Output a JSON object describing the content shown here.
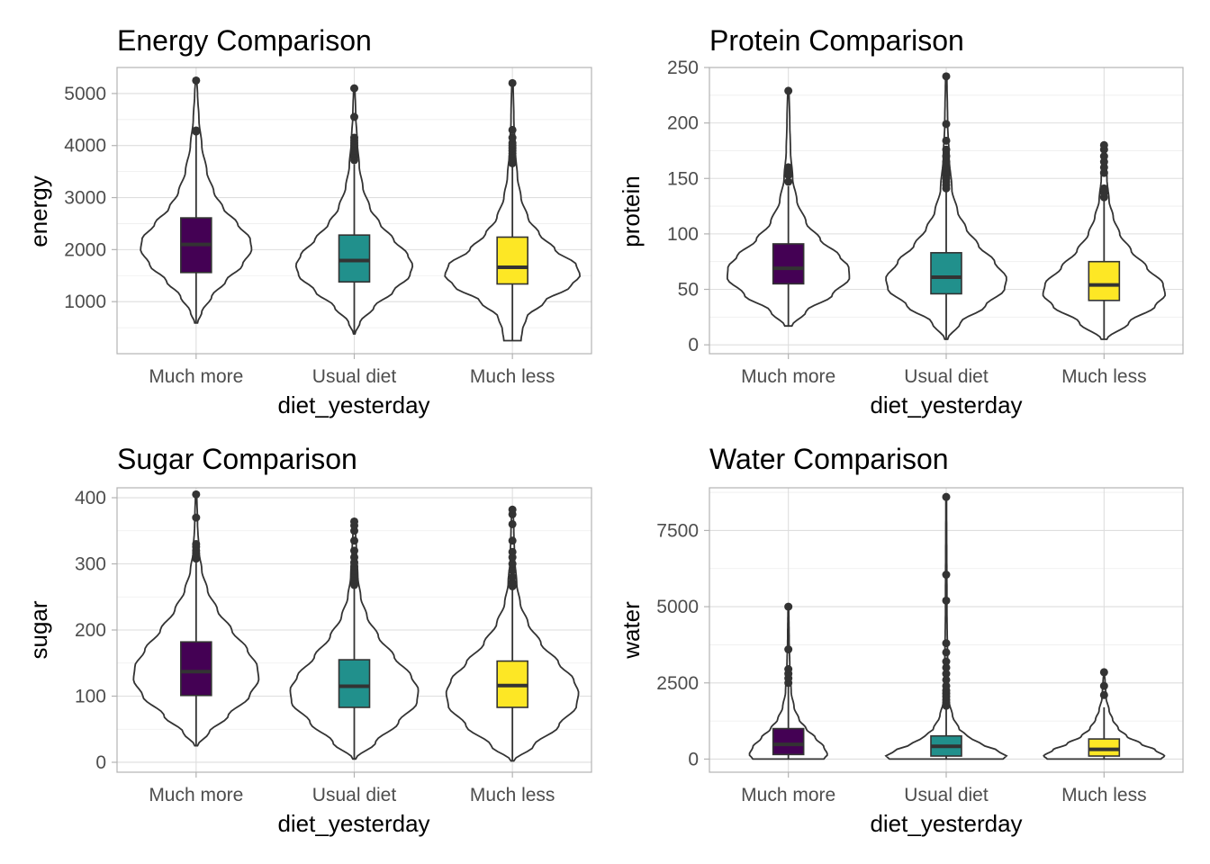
{
  "colors": {
    "Much more": "#440154",
    "Usual diet": "#21908C",
    "Much less": "#FDE725"
  },
  "chart_data": [
    {
      "type": "violin",
      "title": "Energy Comparison",
      "xlabel": "diet_yesterday",
      "ylabel": "energy",
      "categories": [
        "Much more",
        "Usual diet",
        "Much less"
      ],
      "ylim": [
        0,
        5500
      ],
      "yticks": [
        1000,
        2000,
        3000,
        4000,
        5000
      ],
      "yminor": [
        500,
        1500,
        2500,
        3500,
        4500,
        5500
      ],
      "grid": true,
      "groups": [
        {
          "category": "Much more",
          "min": 590,
          "q1": 1560,
          "median": 2100,
          "q3": 2610,
          "whisker_low": 590,
          "whisker_high": 4200,
          "max": 5250,
          "outliers": [
            4270,
            4290,
            5250
          ],
          "density": [
            [
              590,
              0.02
            ],
            [
              800,
              0.08
            ],
            [
              1100,
              0.22
            ],
            [
              1400,
              0.42
            ],
            [
              1700,
              0.65
            ],
            [
              2000,
              0.78
            ],
            [
              2200,
              0.76
            ],
            [
              2500,
              0.58
            ],
            [
              2800,
              0.38
            ],
            [
              3100,
              0.25
            ],
            [
              3500,
              0.15
            ],
            [
              4000,
              0.08
            ],
            [
              4500,
              0.04
            ],
            [
              5000,
              0.02
            ],
            [
              5250,
              0.01
            ]
          ]
        },
        {
          "category": "Usual diet",
          "min": 380,
          "q1": 1380,
          "median": 1790,
          "q3": 2280,
          "whisker_low": 380,
          "whisker_high": 3640,
          "max": 5100,
          "outliers": [
            3720,
            3770,
            3810,
            3860,
            3900,
            3950,
            4000,
            4050,
            4100,
            4150,
            4550,
            5100
          ],
          "density": [
            [
              380,
              0.01
            ],
            [
              600,
              0.08
            ],
            [
              900,
              0.28
            ],
            [
              1200,
              0.55
            ],
            [
              1500,
              0.78
            ],
            [
              1700,
              0.82
            ],
            [
              1900,
              0.75
            ],
            [
              2200,
              0.55
            ],
            [
              2500,
              0.36
            ],
            [
              2800,
              0.22
            ],
            [
              3200,
              0.12
            ],
            [
              3600,
              0.07
            ],
            [
              4100,
              0.04
            ],
            [
              4600,
              0.02
            ],
            [
              5100,
              0.01
            ]
          ]
        },
        {
          "category": "Much less",
          "min": 250,
          "q1": 1340,
          "median": 1660,
          "q3": 2240,
          "whisker_low": 250,
          "whisker_high": 3590,
          "max": 5200,
          "outliers": [
            3660,
            3720,
            3760,
            3800,
            3850,
            3900,
            3950,
            4000,
            4050,
            4150,
            4300,
            5200
          ],
          "density": [
            [
              250,
              0.12
            ],
            [
              450,
              0.14
            ],
            [
              700,
              0.2
            ],
            [
              1000,
              0.45
            ],
            [
              1300,
              0.82
            ],
            [
              1500,
              0.95
            ],
            [
              1700,
              0.9
            ],
            [
              2000,
              0.6
            ],
            [
              2300,
              0.38
            ],
            [
              2600,
              0.22
            ],
            [
              3000,
              0.12
            ],
            [
              3400,
              0.07
            ],
            [
              3900,
              0.04
            ],
            [
              4500,
              0.02
            ],
            [
              5200,
              0.01
            ]
          ]
        }
      ]
    },
    {
      "type": "violin",
      "title": "Protein Comparison",
      "xlabel": "diet_yesterday",
      "ylabel": "protein",
      "categories": [
        "Much more",
        "Usual diet",
        "Much less"
      ],
      "ylim": [
        -8,
        250
      ],
      "yticks": [
        0,
        50,
        100,
        150,
        200,
        250
      ],
      "yminor": [
        25,
        75,
        125,
        175,
        225
      ],
      "grid": true,
      "groups": [
        {
          "category": "Much more",
          "min": 17,
          "q1": 55,
          "median": 69,
          "q3": 91,
          "whisker_low": 17,
          "whisker_high": 143,
          "max": 229,
          "outliers": [
            147,
            153,
            155,
            158,
            160,
            229
          ],
          "density": [
            [
              17,
              0.05
            ],
            [
              30,
              0.25
            ],
            [
              45,
              0.62
            ],
            [
              60,
              0.86
            ],
            [
              70,
              0.85
            ],
            [
              80,
              0.72
            ],
            [
              95,
              0.45
            ],
            [
              110,
              0.25
            ],
            [
              130,
              0.12
            ],
            [
              150,
              0.06
            ],
            [
              175,
              0.03
            ],
            [
              200,
              0.02
            ],
            [
              229,
              0.01
            ]
          ]
        },
        {
          "category": "Usual diet",
          "min": 5,
          "q1": 46,
          "median": 61,
          "q3": 83,
          "whisker_low": 5,
          "whisker_high": 138,
          "max": 242,
          "outliers": [
            141,
            144,
            147,
            150,
            153,
            156,
            160,
            165,
            170,
            176,
            184,
            199,
            242
          ],
          "density": [
            [
              5,
              0.02
            ],
            [
              20,
              0.2
            ],
            [
              35,
              0.55
            ],
            [
              50,
              0.82
            ],
            [
              60,
              0.85
            ],
            [
              75,
              0.68
            ],
            [
              90,
              0.45
            ],
            [
              105,
              0.28
            ],
            [
              120,
              0.16
            ],
            [
              140,
              0.08
            ],
            [
              170,
              0.04
            ],
            [
              200,
              0.02
            ],
            [
              242,
              0.01
            ]
          ]
        },
        {
          "category": "Much less",
          "min": 5,
          "q1": 40,
          "median": 54,
          "q3": 75,
          "whisker_low": 5,
          "whisker_high": 130,
          "max": 180,
          "outliers": [
            133,
            137,
            141,
            155,
            160,
            165,
            170,
            176,
            180
          ],
          "density": [
            [
              5,
              0.04
            ],
            [
              20,
              0.35
            ],
            [
              35,
              0.72
            ],
            [
              45,
              0.86
            ],
            [
              55,
              0.83
            ],
            [
              70,
              0.6
            ],
            [
              85,
              0.38
            ],
            [
              100,
              0.22
            ],
            [
              115,
              0.13
            ],
            [
              130,
              0.07
            ],
            [
              150,
              0.04
            ],
            [
              165,
              0.03
            ],
            [
              180,
              0.01
            ]
          ]
        }
      ]
    },
    {
      "type": "violin",
      "title": "Sugar Comparison",
      "xlabel": "diet_yesterday",
      "ylabel": "sugar",
      "categories": [
        "Much more",
        "Usual diet",
        "Much less"
      ],
      "ylim": [
        -15,
        415
      ],
      "yticks": [
        0,
        100,
        200,
        300,
        400
      ],
      "yminor": [
        50,
        150,
        250,
        350
      ],
      "grid": true,
      "groups": [
        {
          "category": "Much more",
          "min": 25,
          "q1": 101,
          "median": 137,
          "q3": 182,
          "whisker_low": 25,
          "whisker_high": 305,
          "max": 405,
          "outliers": [
            308,
            312,
            316,
            320,
            326,
            330,
            370,
            405
          ],
          "density": [
            [
              25,
              0.02
            ],
            [
              45,
              0.18
            ],
            [
              70,
              0.45
            ],
            [
              100,
              0.75
            ],
            [
              125,
              0.88
            ],
            [
              145,
              0.86
            ],
            [
              170,
              0.72
            ],
            [
              200,
              0.5
            ],
            [
              230,
              0.3
            ],
            [
              260,
              0.16
            ],
            [
              290,
              0.08
            ],
            [
              320,
              0.04
            ],
            [
              360,
              0.02
            ],
            [
              405,
              0.01
            ]
          ]
        },
        {
          "category": "Usual diet",
          "min": 5,
          "q1": 83,
          "median": 115,
          "q3": 155,
          "whisker_low": 5,
          "whisker_high": 264,
          "max": 364,
          "outliers": [
            268,
            272,
            276,
            280,
            285,
            290,
            296,
            302,
            310,
            320,
            335,
            350,
            358,
            364
          ],
          "density": [
            [
              5,
              0.02
            ],
            [
              30,
              0.3
            ],
            [
              60,
              0.62
            ],
            [
              90,
              0.88
            ],
            [
              110,
              0.9
            ],
            [
              130,
              0.8
            ],
            [
              160,
              0.56
            ],
            [
              190,
              0.34
            ],
            [
              220,
              0.18
            ],
            [
              250,
              0.09
            ],
            [
              280,
              0.05
            ],
            [
              320,
              0.03
            ],
            [
              364,
              0.01
            ]
          ]
        },
        {
          "category": "Much less",
          "min": 2,
          "q1": 83,
          "median": 116,
          "q3": 153,
          "whisker_low": 2,
          "whisker_high": 262,
          "max": 382,
          "outliers": [
            266,
            272,
            280,
            290,
            300,
            310,
            318,
            335,
            360,
            375,
            382
          ],
          "density": [
            [
              2,
              0.02
            ],
            [
              25,
              0.3
            ],
            [
              55,
              0.65
            ],
            [
              85,
              0.9
            ],
            [
              105,
              0.93
            ],
            [
              125,
              0.86
            ],
            [
              150,
              0.65
            ],
            [
              180,
              0.4
            ],
            [
              210,
              0.22
            ],
            [
              240,
              0.11
            ],
            [
              270,
              0.06
            ],
            [
              310,
              0.03
            ],
            [
              350,
              0.02
            ],
            [
              382,
              0.01
            ]
          ]
        }
      ]
    },
    {
      "type": "violin",
      "title": "Water Comparison",
      "xlabel": "diet_yesterday",
      "ylabel": "water",
      "categories": [
        "Much more",
        "Usual diet",
        "Much less"
      ],
      "ylim": [
        -430,
        8900
      ],
      "yticks": [
        0,
        2500,
        5000,
        7500
      ],
      "yminor": [
        1250,
        3750,
        6250,
        8750
      ],
      "grid": true,
      "groups": [
        {
          "category": "Much more",
          "min": 0,
          "q1": 150,
          "median": 480,
          "q3": 1000,
          "whisker_low": 0,
          "whisker_high": 2400,
          "max": 5000,
          "outliers": [
            2500,
            2650,
            2800,
            2950,
            3600,
            5000
          ],
          "density": [
            [
              0,
              0.5
            ],
            [
              150,
              0.55
            ],
            [
              400,
              0.5
            ],
            [
              700,
              0.38
            ],
            [
              1000,
              0.25
            ],
            [
              1300,
              0.15
            ],
            [
              1700,
              0.08
            ],
            [
              2200,
              0.04
            ],
            [
              3000,
              0.02
            ],
            [
              4000,
              0.01
            ],
            [
              5000,
              0.005
            ]
          ]
        },
        {
          "category": "Usual diet",
          "min": 0,
          "q1": 100,
          "median": 420,
          "q3": 760,
          "whisker_low": 0,
          "whisker_high": 1650,
          "max": 8600,
          "outliers": [
            1750,
            1850,
            1950,
            2050,
            2150,
            2250,
            2400,
            2600,
            2800,
            3000,
            3200,
            3500,
            3800,
            5200,
            6050,
            8600
          ],
          "density": [
            [
              0,
              0.8
            ],
            [
              100,
              0.85
            ],
            [
              300,
              0.7
            ],
            [
              500,
              0.48
            ],
            [
              750,
              0.3
            ],
            [
              1000,
              0.18
            ],
            [
              1400,
              0.09
            ],
            [
              1900,
              0.04
            ],
            [
              3000,
              0.02
            ],
            [
              5000,
              0.01
            ],
            [
              8600,
              0.005
            ]
          ]
        },
        {
          "category": "Much less",
          "min": 0,
          "q1": 100,
          "median": 320,
          "q3": 660,
          "whisker_low": 0,
          "whisker_high": 1700,
          "max": 2850,
          "outliers": [
            2100,
            2400,
            2850
          ],
          "density": [
            [
              0,
              0.8
            ],
            [
              100,
              0.85
            ],
            [
              300,
              0.72
            ],
            [
              500,
              0.52
            ],
            [
              750,
              0.32
            ],
            [
              1000,
              0.2
            ],
            [
              1300,
              0.12
            ],
            [
              1600,
              0.07
            ],
            [
              2000,
              0.03
            ],
            [
              2500,
              0.015
            ],
            [
              2850,
              0.005
            ]
          ]
        }
      ]
    }
  ]
}
